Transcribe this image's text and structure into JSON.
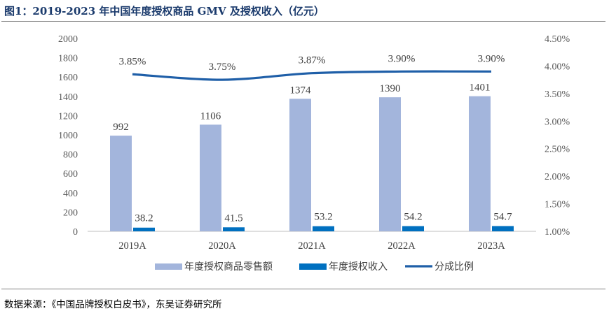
{
  "title": "图1：2019-2023 年中国年度授权商品 GMV 及授权收入（亿元）",
  "source": "数据来源：《中国品牌授权白皮书》，东吴证券研究所",
  "colors": {
    "title": "#1a3a6c",
    "retail_bar": "#a3b5dc",
    "revenue_bar": "#0070c0",
    "ratio_line": "#1f5fa8"
  },
  "chart_data": {
    "type": "bar",
    "categories": [
      "2019A",
      "2020A",
      "2021A",
      "2022A",
      "2023A"
    ],
    "series": [
      {
        "name": "年度授权商品零售额",
        "type": "bar",
        "axis": "left",
        "values": [
          992,
          1106,
          1374,
          1390,
          1401
        ],
        "labels": [
          "992",
          "1106",
          "1374",
          "1390",
          "1401"
        ]
      },
      {
        "name": "年度授权收入",
        "type": "bar",
        "axis": "left",
        "values": [
          38.2,
          41.5,
          53.2,
          54.2,
          54.7
        ],
        "labels": [
          "38.2",
          "41.5",
          "53.2",
          "54.2",
          "54.7"
        ]
      },
      {
        "name": "分成比例",
        "type": "line",
        "axis": "right",
        "values": [
          3.85,
          3.75,
          3.87,
          3.9,
          3.9
        ],
        "labels": [
          "3.85%",
          "3.75%",
          "3.87%",
          "3.90%",
          "3.90%"
        ]
      }
    ],
    "y_left": {
      "min": 0,
      "max": 2000,
      "ticks": [
        "0",
        "200",
        "400",
        "600",
        "800",
        "1000",
        "1200",
        "1400",
        "1600",
        "1800",
        "2000"
      ]
    },
    "y_right": {
      "min": 1.0,
      "max": 4.5,
      "ticks": [
        "1.00%",
        "1.50%",
        "2.00%",
        "2.50%",
        "3.00%",
        "3.50%",
        "4.00%",
        "4.50%"
      ]
    },
    "grid": false,
    "legend": "bottom"
  }
}
